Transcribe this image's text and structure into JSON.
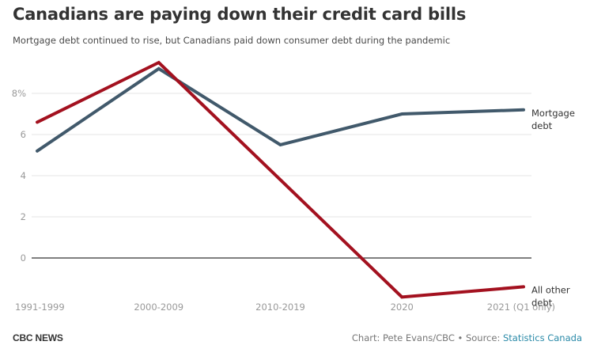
{
  "header": {
    "title": "Canadians are paying down their credit card bills",
    "subtitle": "Mortgage debt continued to rise, but Canadians paid down consumer debt during the pandemic"
  },
  "footer": {
    "brand": "CBC NEWS",
    "credit": "Chart: Pete Evans/CBC • Source: ",
    "source_link": "Statistics Canada"
  },
  "colors": {
    "mortgage": "#41596b",
    "other": "#a3111f",
    "grid": "#e6e6e6",
    "zero": "#333333",
    "tick": "#999999"
  },
  "chart_data": {
    "type": "line",
    "title": "Canadians are paying down their credit card bills",
    "subtitle": "Mortgage debt continued to rise, but Canadians paid down consumer debt during the pandemic",
    "xlabel": "",
    "ylabel": "",
    "categories": [
      "1991-1999",
      "2000-2009",
      "2010-2019",
      "2020",
      "2021 (Q1 only)"
    ],
    "y_ticks": [
      0,
      2,
      4,
      6,
      8
    ],
    "y_tick_labels": [
      "0",
      "2",
      "4",
      "6",
      "8%"
    ],
    "ylim": [
      -2,
      9.6
    ],
    "grid": true,
    "legend": "inline-right",
    "series": [
      {
        "name": "Mortgage debt",
        "label_lines": [
          "Mortgage",
          "debt"
        ],
        "values": [
          5.2,
          9.2,
          5.5,
          7.0,
          7.2
        ]
      },
      {
        "name": "All other debt",
        "label_lines": [
          "All other",
          "debt"
        ],
        "values": [
          6.6,
          9.5,
          3.8,
          -1.9,
          -1.4
        ]
      }
    ]
  }
}
